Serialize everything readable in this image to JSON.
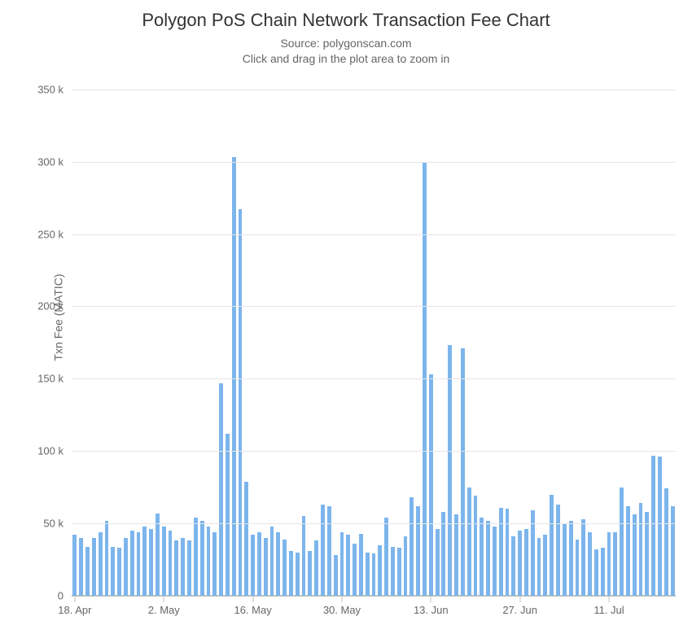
{
  "chart": {
    "type": "bar",
    "title": "Polygon PoS Chain Network Transaction Fee Chart",
    "subtitle_line1": "Source: polygonscan.com",
    "subtitle_line2": "Click and drag in the plot area to zoom in",
    "y_axis_title": "Txn Fee (MATIC)",
    "title_fontsize": 22,
    "subtitle_fontsize": 14,
    "axis_label_fontsize": 13,
    "axis_title_fontsize": 14,
    "background_color": "#ffffff",
    "bar_color": "#7cb5ec",
    "gridline_color": "#e6e6e6",
    "axis_line_color": "#c0c0c0",
    "title_text_color": "#333333",
    "subtitle_text_color": "#666666",
    "tick_label_color": "#666666",
    "y": {
      "min": 0,
      "max": 360,
      "tick_step": 50,
      "ticks": [
        0,
        50,
        100,
        150,
        200,
        250,
        300,
        350
      ],
      "tick_labels": [
        "0",
        "50 k",
        "100 k",
        "150 k",
        "200 k",
        "250 k",
        "300 k",
        "350 k"
      ]
    },
    "x": {
      "tick_indices": [
        0,
        14,
        28,
        42,
        56,
        70,
        84
      ],
      "tick_labels": [
        "18. Apr",
        "2. May",
        "16. May",
        "30. May",
        "13. Jun",
        "27. Jun",
        "11. Jul"
      ]
    },
    "bar_width_ratio": 0.62,
    "values": [
      42,
      40,
      34,
      40,
      44,
      52,
      34,
      33,
      40,
      45,
      44,
      48,
      46,
      57,
      48,
      45,
      38,
      40,
      38,
      54,
      52,
      48,
      44,
      147,
      112,
      303,
      267,
      79,
      42,
      44,
      40,
      48,
      44,
      39,
      31,
      30,
      55,
      31,
      38,
      63,
      62,
      28,
      44,
      42,
      36,
      43,
      30,
      29,
      35,
      54,
      34,
      33,
      41,
      68,
      62,
      299,
      153,
      46,
      58,
      173,
      56,
      171,
      75,
      69,
      54,
      52,
      48,
      61,
      60,
      41,
      45,
      46,
      59,
      40,
      42,
      70,
      63,
      50,
      52,
      39,
      53,
      44,
      32,
      33,
      44,
      44,
      75,
      62,
      56,
      64,
      58,
      97,
      96,
      74,
      62
    ]
  }
}
